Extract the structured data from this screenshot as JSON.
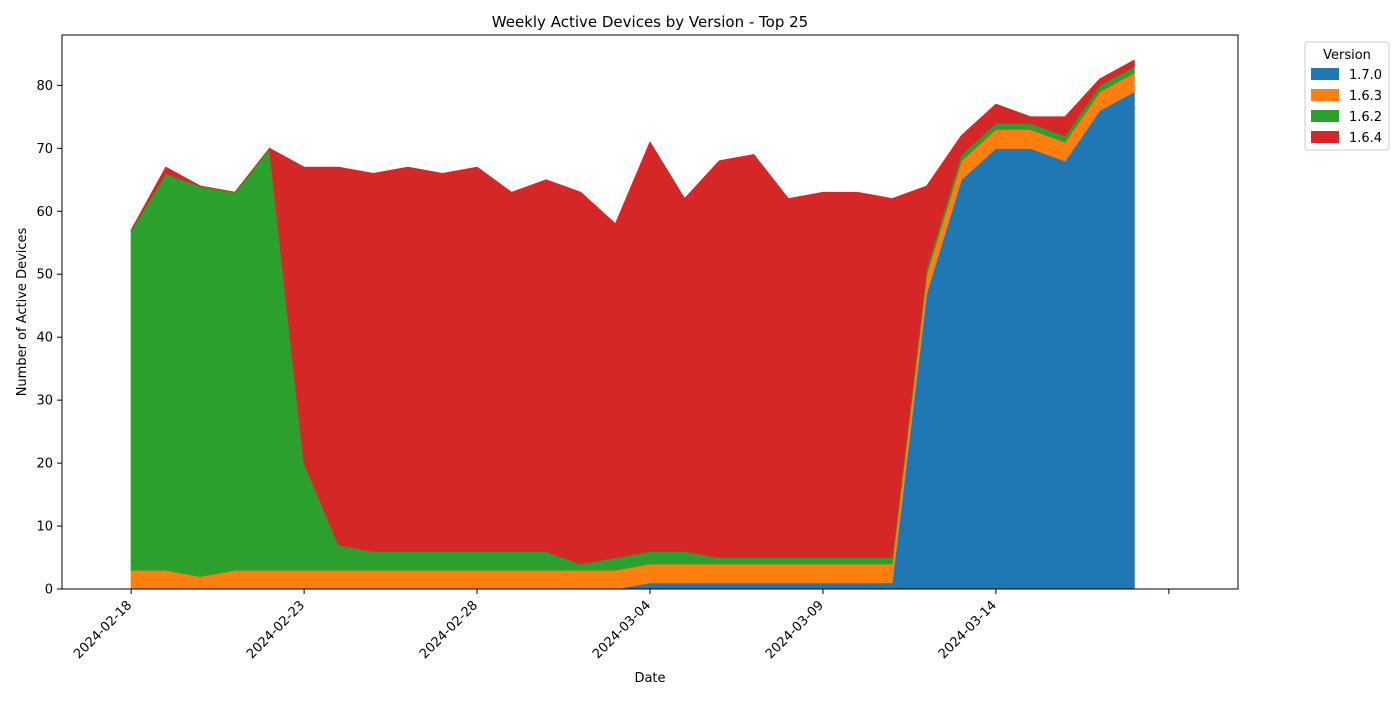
{
  "chart_data": {
    "type": "area",
    "stacked": true,
    "title": "Weekly Active Devices by Version - Top 25",
    "xlabel": "Date",
    "ylabel": "Number of Active Devices",
    "xlim": [
      "2024-02-16",
      "2024-03-21"
    ],
    "ylim": [
      0,
      88
    ],
    "xticks": [
      "2024-02-18",
      "2024-02-23",
      "2024-02-28",
      "2024-03-04",
      "2024-03-09",
      "2024-03-14"
    ],
    "yticks": [
      0,
      10,
      20,
      30,
      40,
      50,
      60,
      70,
      80
    ],
    "grid": false,
    "legend": {
      "title": "Version",
      "placement": "outside top-right"
    },
    "x": [
      "2024-02-18",
      "2024-02-19",
      "2024-02-20",
      "2024-02-21",
      "2024-02-22",
      "2024-02-23",
      "2024-02-24",
      "2024-02-25",
      "2024-02-26",
      "2024-02-27",
      "2024-02-28",
      "2024-02-29",
      "2024-03-01",
      "2024-03-02",
      "2024-03-03",
      "2024-03-04",
      "2024-03-05",
      "2024-03-06",
      "2024-03-07",
      "2024-03-08",
      "2024-03-09",
      "2024-03-10",
      "2024-03-11",
      "2024-03-12",
      "2024-03-13",
      "2024-03-14",
      "2024-03-15",
      "2024-03-16",
      "2024-03-17",
      "2024-03-18"
    ],
    "series": [
      {
        "name": "1.7.0",
        "color": "#1f77b4",
        "values": [
          0,
          0,
          0,
          0,
          0,
          0,
          0,
          0,
          0,
          0,
          0,
          0,
          0,
          0,
          0,
          1,
          1,
          1,
          1,
          1,
          1,
          1,
          1,
          47,
          65,
          70,
          70,
          68,
          76,
          79
        ]
      },
      {
        "name": "1.6.3",
        "color": "#ff7f0e",
        "values": [
          3,
          3,
          2,
          3,
          3,
          3,
          3,
          3,
          3,
          3,
          3,
          3,
          3,
          3,
          3,
          3,
          3,
          3,
          3,
          3,
          3,
          3,
          3,
          3,
          3,
          3,
          3,
          3,
          3,
          3
        ]
      },
      {
        "name": "1.6.2",
        "color": "#2ca02c",
        "values": [
          54,
          63,
          62,
          60,
          67,
          17,
          4,
          3,
          3,
          3,
          3,
          3,
          3,
          1,
          2,
          2,
          2,
          1,
          1,
          1,
          1,
          1,
          1,
          1,
          1,
          1,
          1,
          1,
          1,
          1
        ]
      },
      {
        "name": "1.6.4",
        "color": "#d62728",
        "values": [
          0,
          1,
          0,
          0,
          0,
          47,
          60,
          60,
          61,
          60,
          61,
          57,
          59,
          59,
          53,
          65,
          56,
          63,
          64,
          57,
          58,
          58,
          57,
          13,
          3,
          3,
          1,
          3,
          1,
          1
        ]
      }
    ]
  }
}
